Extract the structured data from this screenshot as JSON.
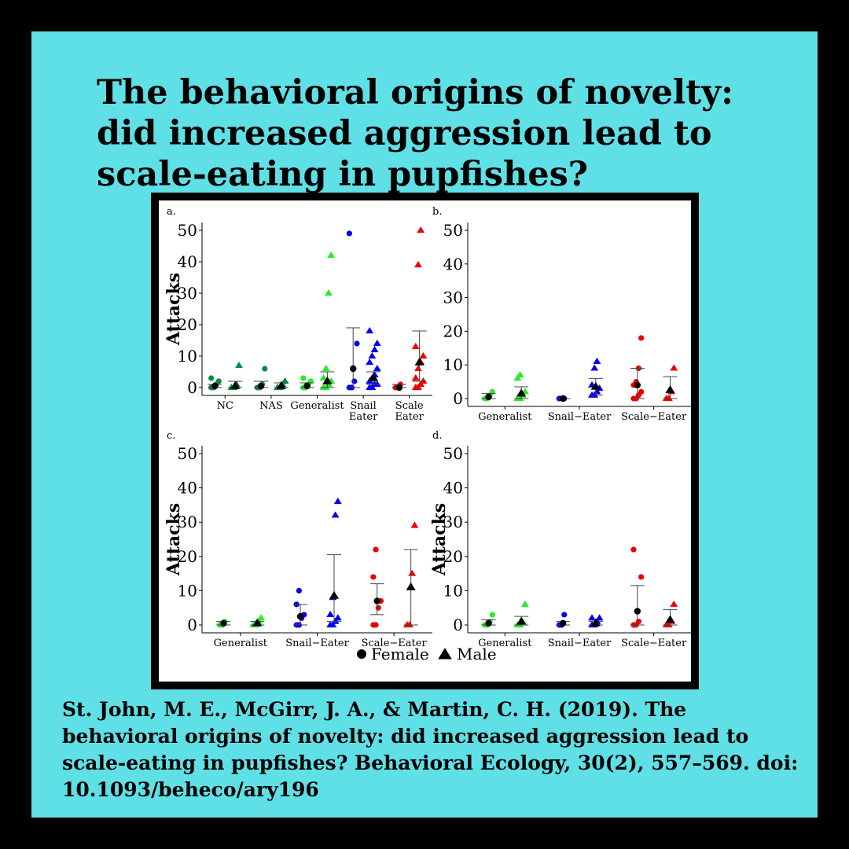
{
  "title": "The behavioral origins of novelty: did increased aggression lead to scale-eating in pupfishes?",
  "citation": "St. John, M. E., McGirr, J. A., & Martin, C. H. (2019). The behavioral origins of novelty: did increased aggression lead to scale-eating in pupfishes? Behavioral Ecology, 30(2), 557–569. doi: 10.1093/beheco/ary196",
  "colors": {
    "background": "#5fe0e6",
    "NC": "#0a8a3c",
    "NAS": "#0a8a3c",
    "Generalist": "#22ee22",
    "Snail": "#0000ee",
    "Scale": "#ee0000"
  },
  "legend": [
    {
      "label": "Female",
      "shape": "circle"
    },
    {
      "label": "Male",
      "shape": "triangle"
    }
  ],
  "chart_data": [
    {
      "panel": "a.",
      "type": "scatter",
      "ylabel": "Attacks",
      "ylim": [
        0,
        50
      ],
      "yticks": [
        0,
        10,
        20,
        30,
        40,
        50
      ],
      "categories": [
        {
          "label": [
            "NC"
          ],
          "color": "NC",
          "female": [
            0,
            0,
            1,
            2,
            3
          ],
          "male": [
            0,
            0,
            1,
            7
          ],
          "female_mean": 0.5,
          "female_err": [
            0,
            1
          ],
          "male_mean": 0.5,
          "male_err": [
            0,
            2
          ]
        },
        {
          "label": [
            "NAS"
          ],
          "color": "NAS",
          "female": [
            0,
            0,
            1,
            6
          ],
          "male": [
            0,
            0,
            1,
            2
          ],
          "female_mean": 0.5,
          "female_err": [
            0,
            2
          ],
          "male_mean": 0.5,
          "male_err": [
            0,
            1.5
          ]
        },
        {
          "label": [
            "Generalist"
          ],
          "color": "Generalist",
          "female": [
            0,
            0,
            1,
            2,
            3
          ],
          "male": [
            0,
            0,
            1,
            2,
            3,
            6,
            30,
            42
          ],
          "female_mean": 0.5,
          "female_err": [
            0,
            1.5
          ],
          "male_mean": 2,
          "male_err": [
            0,
            5
          ]
        },
        {
          "label": [
            "Snail",
            "Eater"
          ],
          "color": "Snail",
          "female": [
            0,
            0,
            2,
            14,
            49
          ],
          "male": [
            0,
            0,
            1,
            1,
            2,
            3,
            4,
            6,
            8,
            10,
            12,
            14,
            18
          ],
          "female_mean": 6,
          "female_err": [
            0,
            19
          ],
          "male_mean": 3,
          "male_err": [
            1,
            5
          ]
        },
        {
          "label": [
            "Scale",
            "Eater"
          ],
          "color": "Scale",
          "female": [
            0,
            0,
            1
          ],
          "male": [
            0,
            0,
            1,
            2,
            3,
            6,
            8,
            10,
            13,
            39,
            50
          ],
          "female_mean": 0,
          "female_err": [
            0,
            1
          ],
          "male_mean": 8,
          "male_err": [
            2,
            18
          ]
        }
      ]
    },
    {
      "panel": "b.",
      "type": "scatter",
      "ylabel": "",
      "ylim": [
        0,
        50
      ],
      "yticks": [
        0,
        10,
        20,
        30,
        40,
        50
      ],
      "categories": [
        {
          "label": [
            "Generalist"
          ],
          "color": "Generalist",
          "female": [
            0,
            0,
            1,
            2
          ],
          "male": [
            0,
            0,
            1,
            2,
            6,
            7
          ],
          "female_mean": 0.5,
          "female_err": [
            0,
            1.5
          ],
          "male_mean": 1.5,
          "male_err": [
            0,
            3.5
          ]
        },
        {
          "label": [
            "Snail−Eater"
          ],
          "color": "Snail",
          "female": [
            0,
            0,
            0
          ],
          "male": [
            1,
            1,
            2,
            3,
            4,
            9,
            11
          ],
          "female_mean": 0,
          "female_err": [
            0,
            0
          ],
          "male_mean": 3.5,
          "male_err": [
            1,
            6
          ]
        },
        {
          "label": [
            "Scale−Eater"
          ],
          "color": "Scale",
          "female": [
            0,
            0,
            1,
            2,
            4,
            5,
            9,
            18
          ],
          "male": [
            0,
            0,
            2,
            9
          ],
          "female_mean": 4,
          "female_err": [
            0,
            9
          ],
          "male_mean": 2.5,
          "male_err": [
            0,
            6.5
          ]
        }
      ]
    },
    {
      "panel": "c.",
      "type": "scatter",
      "ylabel": "Attacks",
      "ylim": [
        0,
        50
      ],
      "yticks": [
        0,
        10,
        20,
        30,
        40,
        50
      ],
      "categories": [
        {
          "label": [
            "Generalist"
          ],
          "color": "Generalist",
          "female": [
            0,
            0,
            1
          ],
          "male": [
            0,
            0,
            1,
            2
          ],
          "female_mean": 0.5,
          "female_err": [
            0,
            1
          ],
          "male_mean": 0.5,
          "male_err": [
            0,
            1
          ]
        },
        {
          "label": [
            "Snail−Eater"
          ],
          "color": "Snail",
          "female": [
            0,
            0,
            2,
            3,
            6,
            10
          ],
          "male": [
            0,
            0,
            1,
            2,
            3,
            8,
            32,
            36
          ],
          "female_mean": 2.5,
          "female_err": [
            0,
            6
          ],
          "male_mean": 8.5,
          "male_err": [
            1,
            20.5
          ]
        },
        {
          "label": [
            "Scale−Eater"
          ],
          "color": "Scale",
          "female": [
            0,
            0,
            5,
            7,
            14,
            22
          ],
          "male": [
            0,
            0,
            15,
            29
          ],
          "female_mean": 7,
          "female_err": [
            3,
            12
          ],
          "male_mean": 11,
          "male_err": [
            0,
            22
          ]
        }
      ]
    },
    {
      "panel": "d.",
      "type": "scatter",
      "ylabel": "Attacks",
      "ylim": [
        0,
        50
      ],
      "yticks": [
        0,
        10,
        20,
        30,
        40,
        50
      ],
      "categories": [
        {
          "label": [
            "Generalist"
          ],
          "color": "Generalist",
          "female": [
            0,
            0,
            1,
            3
          ],
          "male": [
            0,
            0,
            1,
            6
          ],
          "female_mean": 0.5,
          "female_err": [
            0,
            1.5
          ],
          "male_mean": 1,
          "male_err": [
            0,
            2.5
          ]
        },
        {
          "label": [
            "Snail−Eater"
          ],
          "color": "Snail",
          "female": [
            0,
            0,
            3
          ],
          "male": [
            0,
            0,
            1,
            2,
            2
          ],
          "female_mean": 0.5,
          "female_err": [
            0,
            1
          ],
          "male_mean": 0.5,
          "male_err": [
            0,
            1
          ]
        },
        {
          "label": [
            "Scale−Eater"
          ],
          "color": "Scale",
          "female": [
            0,
            0,
            1,
            14,
            22
          ],
          "male": [
            0,
            0,
            1,
            6
          ],
          "female_mean": 4,
          "female_err": [
            0,
            11.5
          ],
          "male_mean": 1.5,
          "male_err": [
            0,
            4.5
          ]
        }
      ]
    }
  ]
}
